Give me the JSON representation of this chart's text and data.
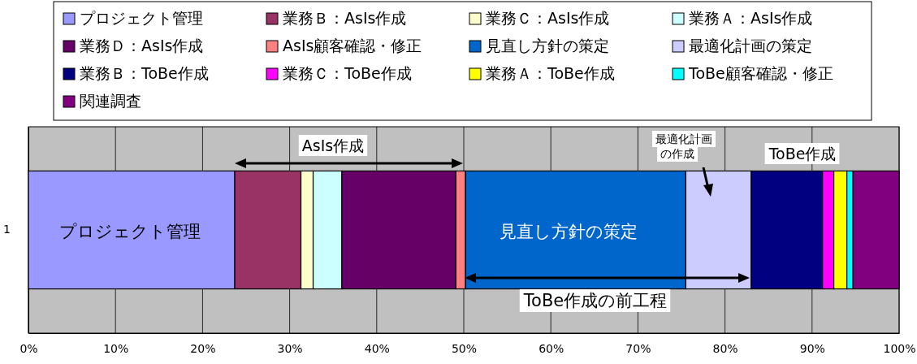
{
  "chart_data": {
    "type": "bar",
    "orientation": "horizontal",
    "stacked": true,
    "categories": [
      "1"
    ],
    "series": [
      {
        "name": "プロジェクト管理",
        "color": "#9999ff",
        "values": [
          23.7
        ]
      },
      {
        "name": "業務Ｂ：AsIs作成",
        "color": "#993366",
        "values": [
          7.6
        ]
      },
      {
        "name": "業務Ｃ：AsIs作成",
        "color": "#ffffcc",
        "values": [
          1.4
        ]
      },
      {
        "name": "業務Ａ：AsIs作成",
        "color": "#ccffff",
        "values": [
          3.3
        ]
      },
      {
        "name": "業務Ｄ：AsIs作成",
        "color": "#660066",
        "values": [
          13.1
        ]
      },
      {
        "name": "AsIs顧客確認・修正",
        "color": "#ff8080",
        "values": [
          1.1
        ]
      },
      {
        "name": "見直し方針の策定",
        "color": "#0066cc",
        "values": [
          25.3
        ]
      },
      {
        "name": "最適化計画の策定",
        "color": "#ccccff",
        "values": [
          7.5
        ]
      },
      {
        "name": "業務Ｂ：ToBe作成",
        "color": "#000080",
        "values": [
          8.2
        ]
      },
      {
        "name": "業務Ｃ：ToBe作成",
        "color": "#ff00ff",
        "values": [
          1.3
        ]
      },
      {
        "name": "業務Ａ：ToBe作成",
        "color": "#ffff00",
        "values": [
          1.5
        ]
      },
      {
        "name": "ToBe顧客確認・修正",
        "color": "#00ffff",
        "values": [
          0.7
        ]
      },
      {
        "name": "関連調査",
        "color": "#800080",
        "values": [
          5.3
        ]
      }
    ],
    "xlim": [
      0,
      100
    ],
    "xticks": [
      {
        "value": 0,
        "label": "0%"
      },
      {
        "value": 10,
        "label": "10%"
      },
      {
        "value": 20,
        "label": "20%"
      },
      {
        "value": 30,
        "label": "30%"
      },
      {
        "value": 40,
        "label": "40%"
      },
      {
        "value": 50,
        "label": "50%"
      },
      {
        "value": 60,
        "label": "60%"
      },
      {
        "value": 70,
        "label": "70%"
      },
      {
        "value": 80,
        "label": "80%"
      },
      {
        "value": 90,
        "label": "90%"
      },
      {
        "value": 100,
        "label": "100%"
      }
    ],
    "grid": "x",
    "legend": "top",
    "annotations": [
      "AsIs作成",
      "最適化計画",
      "の作成",
      "ToBe作成",
      "ToBe作成の前工程",
      "プロジェクト管理",
      "見直し方針の策定"
    ]
  }
}
